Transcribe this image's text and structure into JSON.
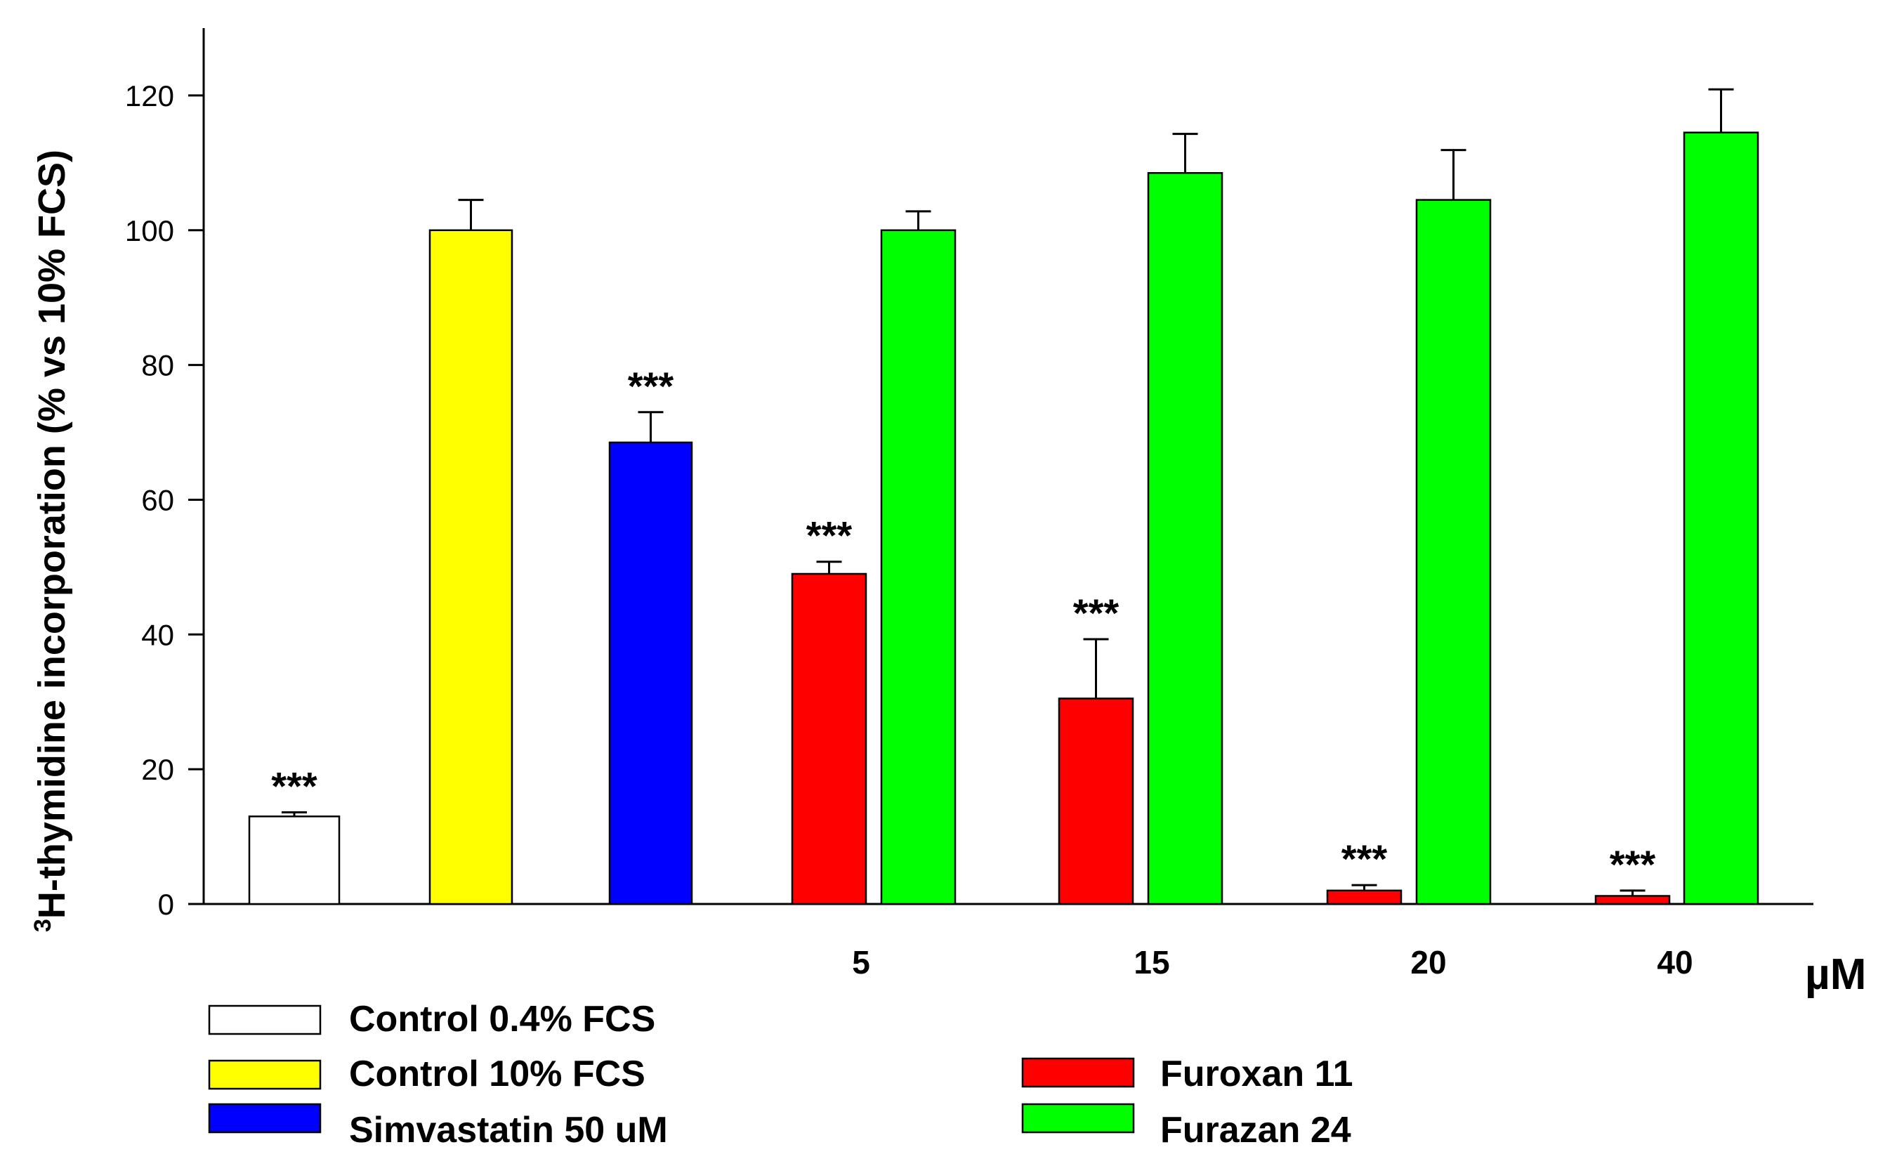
{
  "chart_data": {
    "type": "bar",
    "title": "",
    "ylabel_sup": "3",
    "ylabel": "H-thymidine incorporation (% vs 10% FCS)",
    "xlabel": "",
    "x_unit": "µM",
    "ylim": [
      0,
      130
    ],
    "yticks": [
      0,
      20,
      40,
      60,
      80,
      100,
      120
    ],
    "grid": false,
    "bars": [
      {
        "series": "Control 0.4% FCS",
        "value": 13,
        "error": 0.6,
        "sig": "***",
        "color": "#ffffff"
      },
      {
        "series": "Control 10% FCS",
        "value": 100,
        "error": 4.5,
        "sig": "",
        "color": "#ffff00"
      },
      {
        "series": "Simvastatin 50 uM",
        "value": 68.5,
        "error": 4.5,
        "sig": "***",
        "color": "#0000ff"
      },
      {
        "series": "Furoxan 11",
        "value": 49,
        "error": 1.8,
        "sig": "***",
        "color": "#ff0000",
        "group": "5"
      },
      {
        "series": "Furazan 24",
        "value": 100,
        "error": 2.8,
        "sig": "",
        "color": "#00ff00",
        "group": "5"
      },
      {
        "series": "Furoxan 11",
        "value": 30.5,
        "error": 8.8,
        "sig": "***",
        "color": "#ff0000",
        "group": "15"
      },
      {
        "series": "Furazan 24",
        "value": 108.5,
        "error": 5.8,
        "sig": "",
        "color": "#00ff00",
        "group": "15"
      },
      {
        "series": "Furoxan 11",
        "value": 2,
        "error": 0.8,
        "sig": "***",
        "color": "#ff0000",
        "group": "20"
      },
      {
        "series": "Furazan 24",
        "value": 104.5,
        "error": 7.4,
        "sig": "",
        "color": "#00ff00",
        "group": "20"
      },
      {
        "series": "Furoxan 11",
        "value": 1.2,
        "error": 0.8,
        "sig": "***",
        "color": "#ff0000",
        "group": "40"
      },
      {
        "series": "Furazan 24",
        "value": 114.5,
        "error": 6.4,
        "sig": "",
        "color": "#00ff00",
        "group": "40"
      }
    ],
    "concentrations": [
      "5",
      "15",
      "20",
      "40"
    ],
    "legend": [
      {
        "label": "Control 0.4% FCS",
        "color": "#ffffff"
      },
      {
        "label": "Control 10% FCS",
        "color": "#ffff00"
      },
      {
        "label": "Simvastatin 50 uM",
        "color": "#0000ff"
      },
      {
        "label": "Furoxan 11",
        "color": "#ff0000"
      },
      {
        "label": "Furazan 24",
        "color": "#00ff00"
      }
    ]
  }
}
